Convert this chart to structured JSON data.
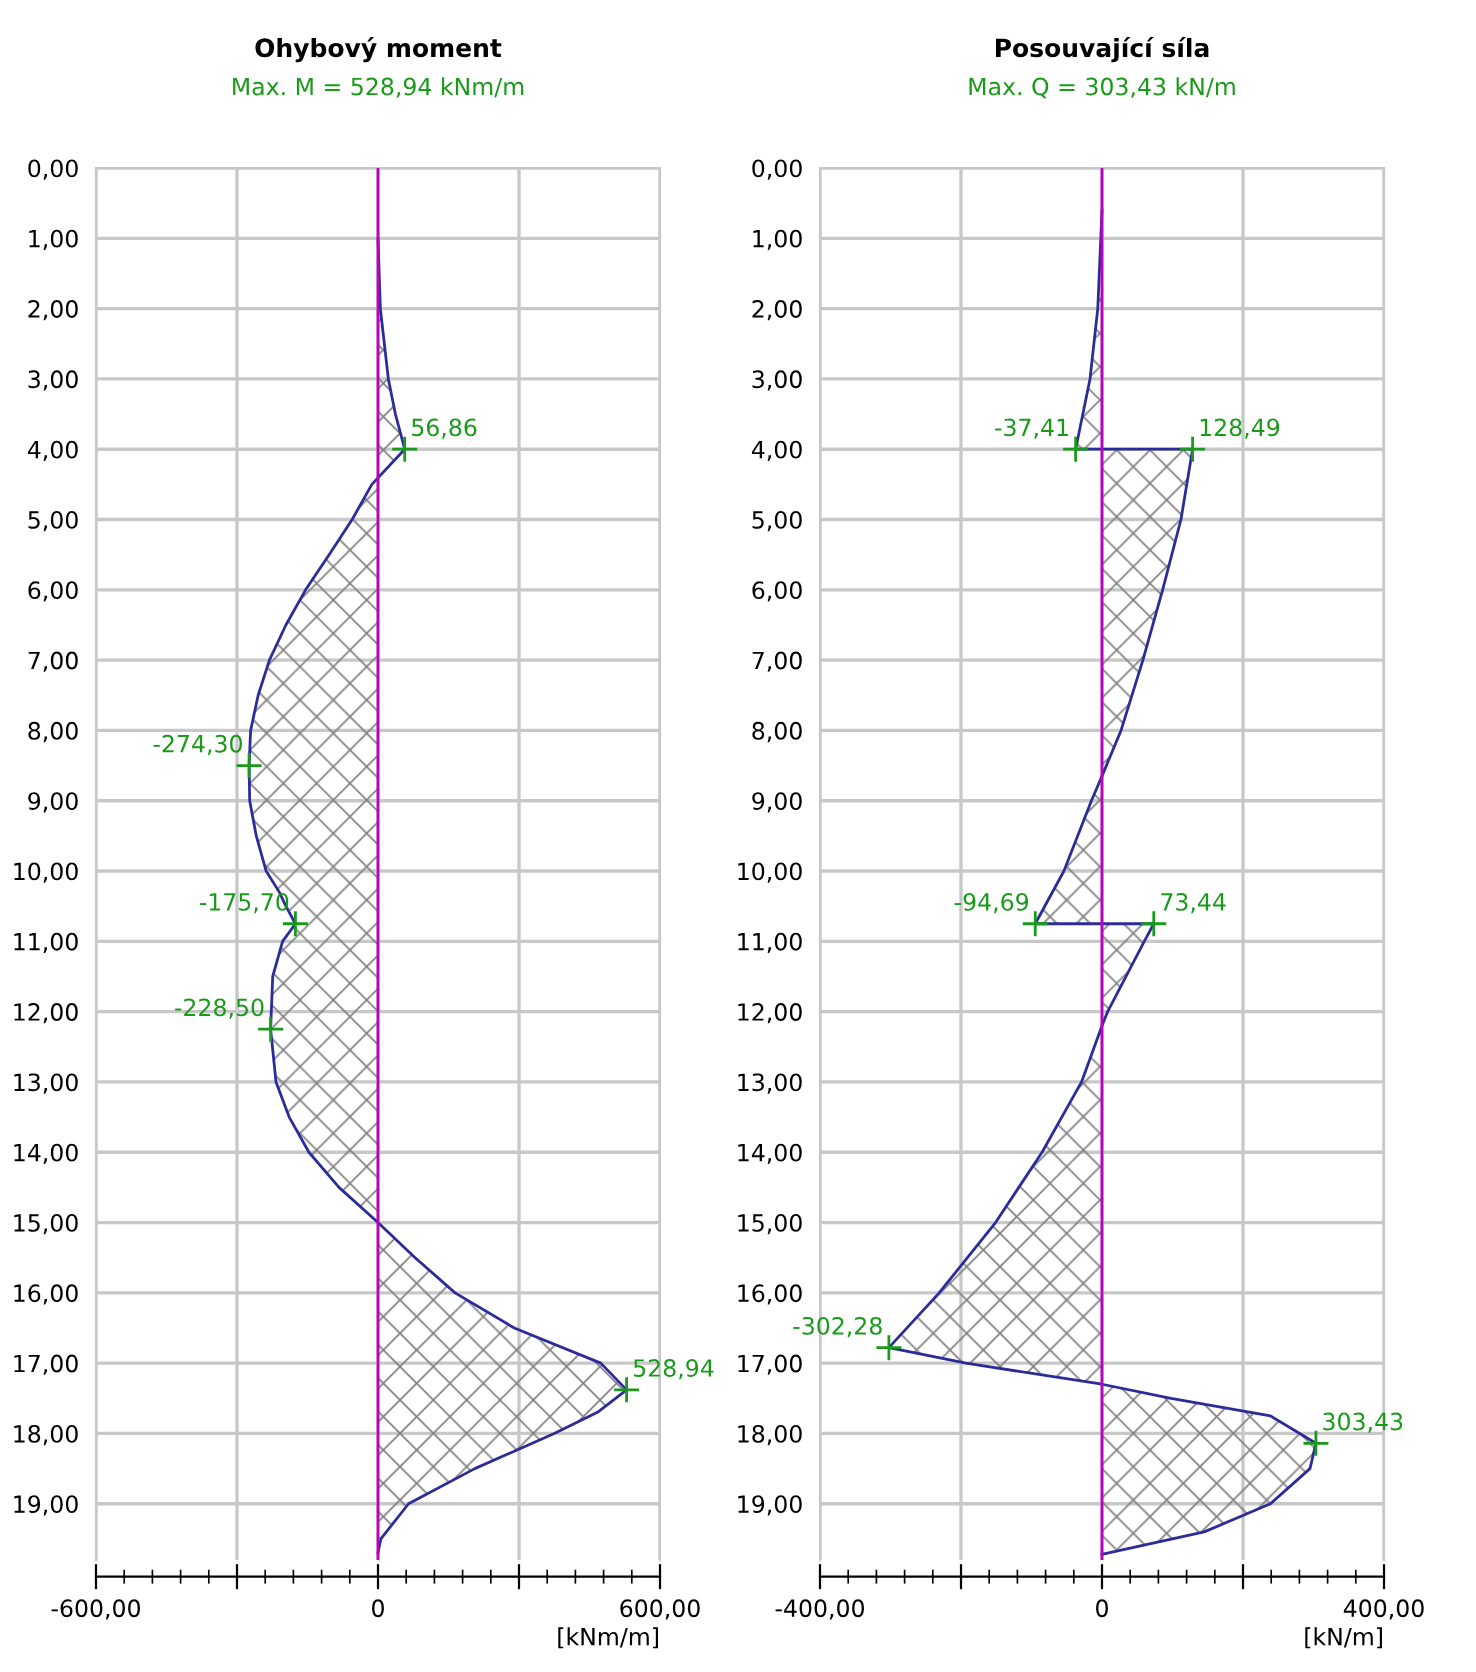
{
  "chart_data": [
    {
      "type": "area",
      "orientation": "horizontal",
      "title": "Ohybový moment",
      "subtitle": "Max. M = 528,94 kNm/m",
      "xlabel": "[kNm/m]",
      "xlim": [
        -600,
        600
      ],
      "xticks": [
        {
          "value": -600,
          "label": "-600,00"
        },
        {
          "value": -300,
          "label": null
        },
        0,
        {
          "value": 300,
          "label": null
        },
        {
          "value": 600,
          "label": "600,00"
        }
      ],
      "ylim": [
        19.8,
        0
      ],
      "yticks": [
        {
          "value": 0,
          "label": "0,00"
        },
        {
          "value": 1,
          "label": "1,00"
        },
        {
          "value": 2,
          "label": "2,00"
        },
        {
          "value": 3,
          "label": "3,00"
        },
        {
          "value": 4,
          "label": "4,00"
        },
        {
          "value": 5,
          "label": "5,00"
        },
        {
          "value": 6,
          "label": "6,00"
        },
        {
          "value": 7,
          "label": "7,00"
        },
        {
          "value": 8,
          "label": "8,00"
        },
        {
          "value": 9,
          "label": "9,00"
        },
        {
          "value": 10,
          "label": "10,00"
        },
        {
          "value": 11,
          "label": "11,00"
        },
        {
          "value": 12,
          "label": "12,00"
        },
        {
          "value": 13,
          "label": "13,00"
        },
        {
          "value": 14,
          "label": "14,00"
        },
        {
          "value": 15,
          "label": "15,00"
        },
        {
          "value": 16,
          "label": "16,00"
        },
        {
          "value": 17,
          "label": "17,00"
        },
        {
          "value": 18,
          "label": "18,00"
        },
        {
          "value": 19,
          "label": "19,00"
        }
      ],
      "grid": true,
      "legend": false,
      "ref_lines": [
        {
          "axis": "x",
          "value": 0,
          "color": "#c000c0"
        }
      ],
      "series": [
        {
          "color": "#2b2b9a",
          "x": [
            1.0,
            2.0,
            3.0,
            3.5,
            4.0,
            4.5,
            5.0,
            5.5,
            6.0,
            6.5,
            7.0,
            7.5,
            8.0,
            8.5,
            9.0,
            9.5,
            10.0,
            10.3,
            10.5,
            10.75,
            11.0,
            11.5,
            12.25,
            13.0,
            13.5,
            14.0,
            14.5,
            15.0,
            15.5,
            16.0,
            16.5,
            17.0,
            17.38,
            17.7,
            18.0,
            18.5,
            19.0,
            19.5,
            19.7
          ],
          "values": [
            0,
            5,
            22,
            37,
            56.86,
            -13,
            -55,
            -104,
            -154,
            -196,
            -231,
            -255,
            -271,
            -274.3,
            -273,
            -259,
            -238,
            -210,
            -196,
            -175.7,
            -203,
            -224,
            -228.5,
            -217,
            -189,
            -147,
            -83,
            0,
            79,
            164,
            290,
            474,
            528.94,
            467,
            375,
            206,
            65,
            6,
            0
          ],
          "value_labels": [
            null,
            null,
            null,
            null,
            "56,86",
            null,
            null,
            null,
            null,
            null,
            null,
            null,
            null,
            "-274,30",
            null,
            null,
            null,
            null,
            null,
            "-175,70",
            null,
            null,
            "-228,50",
            null,
            null,
            null,
            null,
            null,
            null,
            null,
            null,
            null,
            "528,94",
            null,
            null,
            null,
            null,
            null,
            null
          ]
        }
      ]
    },
    {
      "type": "area",
      "orientation": "horizontal",
      "title": "Posouvající síla",
      "subtitle": "Max. Q = 303,43 kN/m",
      "xlabel": "[kN/m]",
      "xlim": [
        -400,
        400
      ],
      "xticks": [
        {
          "value": -400,
          "label": "-400,00"
        },
        {
          "value": -200,
          "label": null
        },
        0,
        {
          "value": 200,
          "label": null
        },
        {
          "value": 400,
          "label": "400,00"
        }
      ],
      "ylim": [
        19.8,
        0
      ],
      "yticks": [
        {
          "value": 0,
          "label": "0,00"
        },
        {
          "value": 1,
          "label": "1,00"
        },
        {
          "value": 2,
          "label": "2,00"
        },
        {
          "value": 3,
          "label": "3,00"
        },
        {
          "value": 4,
          "label": "4,00"
        },
        {
          "value": 5,
          "label": "5,00"
        },
        {
          "value": 6,
          "label": "6,00"
        },
        {
          "value": 7,
          "label": "7,00"
        },
        {
          "value": 8,
          "label": "8,00"
        },
        {
          "value": 9,
          "label": "9,00"
        },
        {
          "value": 10,
          "label": "10,00"
        },
        {
          "value": 11,
          "label": "11,00"
        },
        {
          "value": 12,
          "label": "12,00"
        },
        {
          "value": 13,
          "label": "13,00"
        },
        {
          "value": 14,
          "label": "14,00"
        },
        {
          "value": 15,
          "label": "15,00"
        },
        {
          "value": 16,
          "label": "16,00"
        },
        {
          "value": 17,
          "label": "17,00"
        },
        {
          "value": 18,
          "label": "18,00"
        },
        {
          "value": 19,
          "label": "19,00"
        }
      ],
      "grid": true,
      "legend": false,
      "ref_lines": [
        {
          "axis": "x",
          "value": 0,
          "color": "#c000c0"
        }
      ],
      "series": [
        {
          "color": "#2b2b9a",
          "x": [
            0.6,
            2.0,
            3.0,
            4.0,
            4.0,
            5.0,
            6.0,
            7.0,
            8.0,
            8.65,
            9.0,
            10.0,
            10.75,
            10.75,
            11.0,
            12.0,
            12.2,
            13.0,
            14.0,
            15.0,
            16.0,
            16.78,
            17.0,
            17.3,
            17.5,
            17.75,
            18.14,
            18.5,
            19.0,
            19.4,
            19.72
          ],
          "values": [
            0,
            -6,
            -17,
            -37.41,
            128.49,
            112,
            86,
            58,
            27,
            0,
            -15,
            -54,
            -94.69,
            73.44,
            60,
            8,
            0,
            -29,
            -85,
            -151,
            -231,
            -302.28,
            -193,
            0,
            98,
            239,
            303.43,
            295,
            239,
            145,
            0
          ],
          "value_labels": [
            null,
            null,
            null,
            "-37,41",
            "128,49",
            null,
            null,
            null,
            null,
            null,
            null,
            null,
            "-94,69",
            "73,44",
            null,
            null,
            null,
            null,
            null,
            null,
            null,
            "-302,28",
            null,
            null,
            null,
            null,
            "303,43",
            null,
            null,
            null,
            null
          ]
        }
      ]
    }
  ]
}
